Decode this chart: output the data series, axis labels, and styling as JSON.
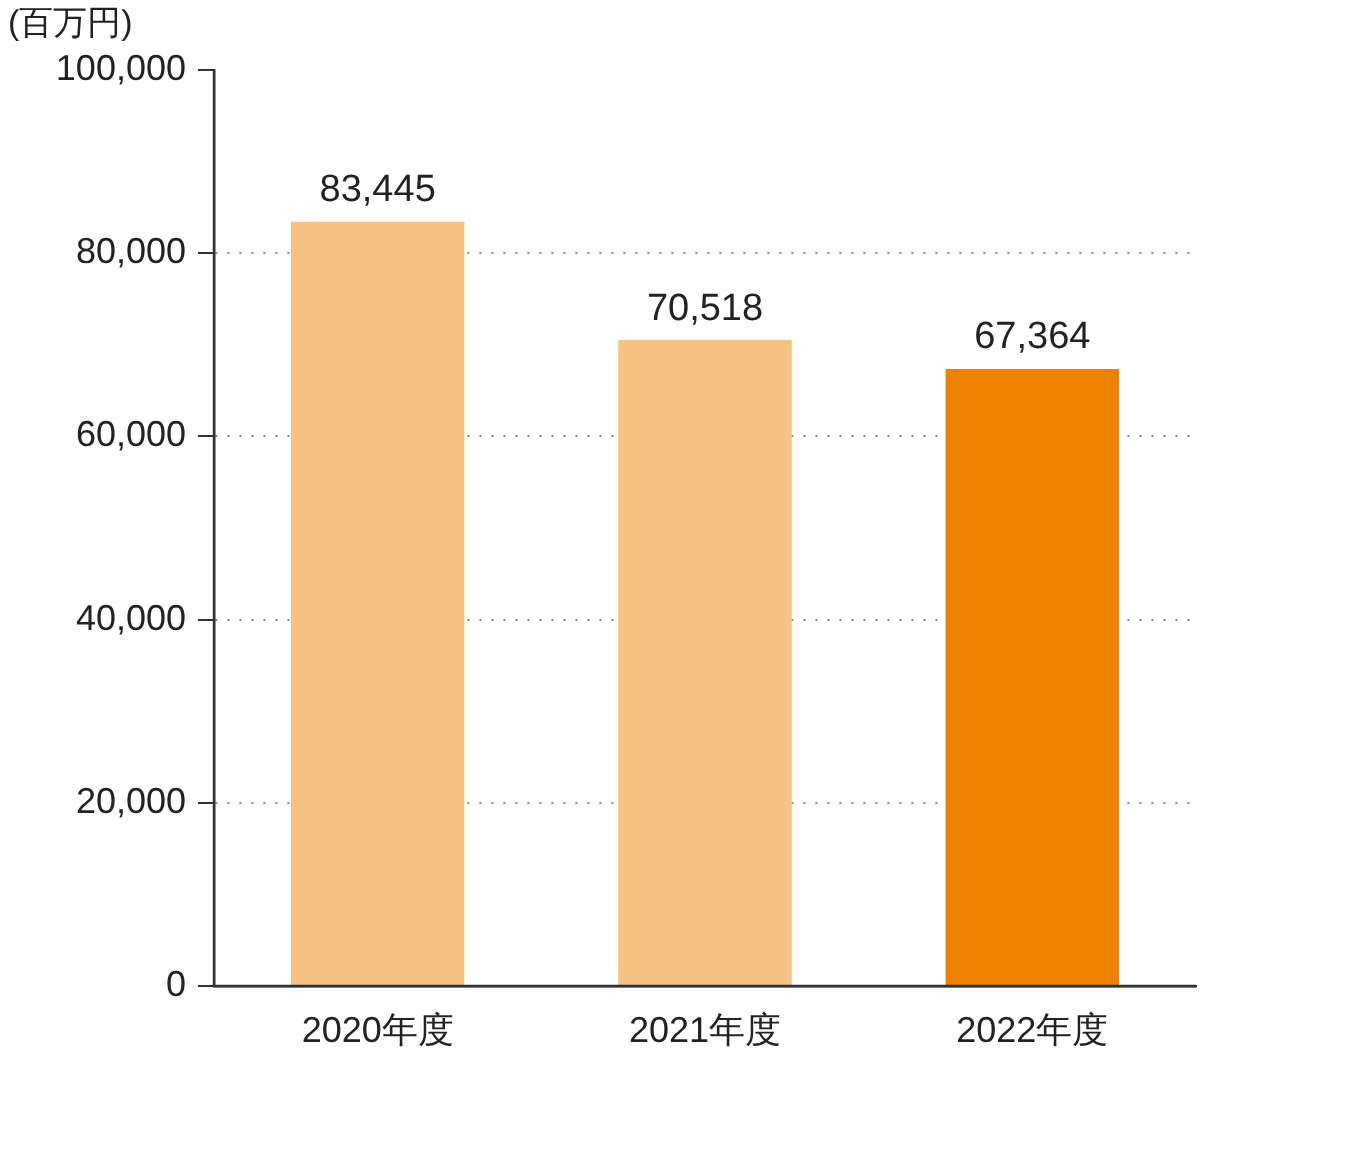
{
  "chart_data": {
    "type": "bar",
    "ylabel": "(百万円)",
    "categories": [
      "2020年度",
      "2021年度",
      "2022年度"
    ],
    "values": [
      83445,
      70518,
      67364
    ],
    "value_labels": [
      "83,445",
      "70,518",
      "67,364"
    ],
    "colors": [
      "#f5c283",
      "#f5c283",
      "#ef8200"
    ],
    "ylim": [
      0,
      100000
    ],
    "yticks": [
      0,
      {
        "value": 20000,
        "label": "20,000"
      },
      {
        "value": 40000,
        "label": "40,000"
      },
      {
        "value": 60000,
        "label": "60,000"
      },
      {
        "value": 80000,
        "label": "80,000"
      },
      {
        "value": 100000,
        "label": "100,000"
      }
    ],
    "grid": "y",
    "legend": false
  }
}
